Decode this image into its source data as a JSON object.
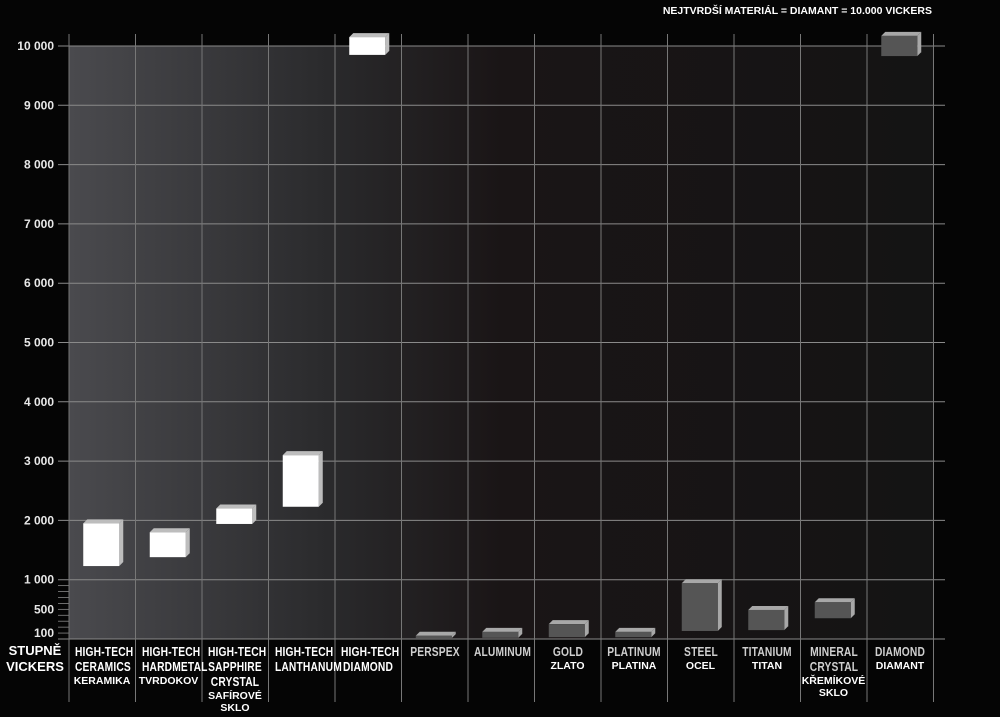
{
  "chart_data": {
    "type": "bar",
    "subtype": "floating-range-3d",
    "title": "",
    "note": "NEJTVRDŠÍ MATERIÁL = DIAMANT = 10.000 VICKERS",
    "ylabel": "STUPNĚ VICKERS",
    "ylim": [
      0,
      10000
    ],
    "yticks": [
      100,
      500,
      1000,
      2000,
      3000,
      4000,
      5000,
      6000,
      7000,
      8000,
      9000,
      10000
    ],
    "ytick_labels": [
      "100",
      "500",
      "1 000",
      "2 000",
      "3 000",
      "4 000",
      "5 000",
      "6 000",
      "7 000",
      "8 000",
      "9 000",
      "10 000"
    ],
    "grid": true,
    "colors": {
      "high_tech": "#ffffff",
      "high_tech_side": "#bdbdbd",
      "other": "#555555",
      "other_side": "#a8a8a8"
    },
    "categories": [
      {
        "label": "HIGH-TECH CERAMICS",
        "sub": "KERAMIKA",
        "low": 1230,
        "high": 1950,
        "high_tech": true
      },
      {
        "label": "HIGH-TECH HARDMETAL",
        "sub": "TVRDOKOV",
        "low": 1380,
        "high": 1800,
        "high_tech": true
      },
      {
        "label": "HIGH-TECH SAPPHIRE CRYSTAL",
        "sub": "SAFÍROVÉ SKLO",
        "low": 1940,
        "high": 2200,
        "high_tech": true
      },
      {
        "label": "HIGH-TECH LANTHANUM",
        "sub": "",
        "low": 2230,
        "high": 3100,
        "high_tech": true
      },
      {
        "label": "HIGH-TECH DIAMOND",
        "sub": "",
        "low": 9850,
        "high": 10150,
        "high_tech": true
      },
      {
        "label": "PERSPEX",
        "sub": "",
        "low": 15,
        "high": 55,
        "high_tech": false
      },
      {
        "label": "ALUMINUM",
        "sub": "",
        "low": 20,
        "high": 120,
        "high_tech": false
      },
      {
        "label": "GOLD",
        "sub": "ZLATO",
        "low": 30,
        "high": 250,
        "high_tech": false
      },
      {
        "label": "PLATINUM",
        "sub": "PLATINA",
        "low": 30,
        "high": 120,
        "high_tech": false
      },
      {
        "label": "STEEL",
        "sub": "OCEL",
        "low": 135,
        "high": 940,
        "high_tech": false
      },
      {
        "label": "TITANIUM",
        "sub": "TITAN",
        "low": 150,
        "high": 490,
        "high_tech": false
      },
      {
        "label": "MINERAL CRYSTAL",
        "sub": "KŘEMÍKOVÉ SKLO",
        "low": 350,
        "high": 620,
        "high_tech": false
      },
      {
        "label": "DIAMOND",
        "sub": "DIAMANT",
        "low": 9830,
        "high": 10170,
        "high_tech": false
      }
    ]
  }
}
